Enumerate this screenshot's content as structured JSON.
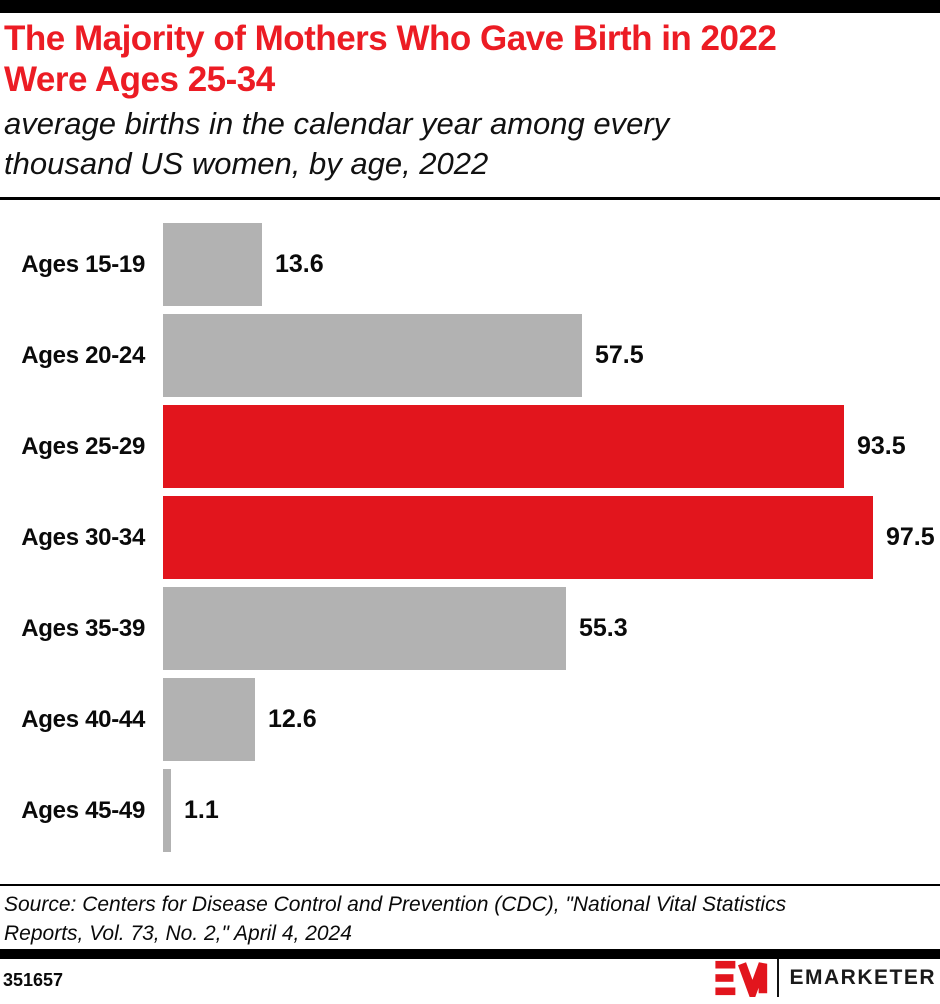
{
  "header": {
    "title_lines": [
      "The Majority of Mothers Who Gave Birth in 2022",
      "Were Ages 25-34"
    ],
    "subtitle_lines": [
      "average births in the calendar year among every",
      "thousand US women, by age, 2022"
    ]
  },
  "chart_data": {
    "type": "bar",
    "orientation": "horizontal",
    "title": "The Majority of Mothers Who Gave Birth in 2022 Were Ages 25-34",
    "subtitle": "average births in the calendar year among every thousand US women, by age, 2022",
    "categories": [
      "Ages 15-19",
      "Ages 20-24",
      "Ages 25-29",
      "Ages 30-34",
      "Ages 35-39",
      "Ages 40-44",
      "Ages 45-49"
    ],
    "values": [
      13.6,
      57.5,
      93.5,
      97.5,
      55.3,
      12.6,
      1.1
    ],
    "highlighted_categories": [
      "Ages 25-29",
      "Ages 30-34"
    ],
    "value_labels": [
      "13.6",
      "57.5",
      "93.5",
      "97.5",
      "55.3",
      "12.6",
      "1.1"
    ],
    "xlim": [
      0,
      100
    ],
    "xlabel": "",
    "ylabel": "",
    "grid": false,
    "legend": false,
    "data_labels_position": "right-of-bar"
  },
  "colors": {
    "title_red": "#EC1C24",
    "bar_red": "#E2151D",
    "bar_gray": "#B2B2B2",
    "text_black": "#0A0A0A",
    "rule_black": "#000000"
  },
  "source": {
    "lines": [
      "Source: Centers for Disease Control and Prevention (CDC), \"National Vital Statistics",
      "Reports, Vol. 73, No. 2,\" April 4, 2024"
    ]
  },
  "footer": {
    "chart_id": "351657",
    "brand": "EMARKETER"
  }
}
